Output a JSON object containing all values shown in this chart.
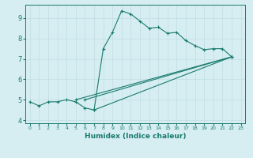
{
  "bg_color": "#d6eef2",
  "line_color": "#1a7a6e",
  "xlabel": "Humidex (Indice chaleur)",
  "xlim": [
    -0.5,
    23.5
  ],
  "ylim": [
    3.85,
    9.65
  ],
  "xticks": [
    0,
    1,
    2,
    3,
    4,
    5,
    6,
    7,
    8,
    9,
    10,
    11,
    12,
    13,
    14,
    15,
    16,
    17,
    18,
    19,
    20,
    21,
    22,
    23
  ],
  "yticks": [
    4,
    5,
    6,
    7,
    8,
    9
  ],
  "curve_main_x": [
    0,
    1,
    2,
    3,
    4,
    5,
    6,
    7,
    8,
    9,
    10,
    11,
    12,
    13,
    14,
    15,
    16,
    17,
    18,
    19,
    20,
    21,
    22
  ],
  "curve_main_y": [
    4.9,
    4.7,
    4.9,
    4.9,
    5.0,
    4.9,
    4.6,
    4.5,
    7.5,
    8.3,
    9.35,
    9.2,
    8.85,
    8.5,
    8.55,
    8.25,
    8.3,
    7.9,
    7.65,
    7.45,
    7.5,
    7.5,
    7.1
  ],
  "line1_x": [
    5,
    22
  ],
  "line1_y": [
    5.0,
    7.1
  ],
  "line2_x": [
    6,
    22
  ],
  "line2_y": [
    5.0,
    7.1
  ],
  "line3_x": [
    7,
    22
  ],
  "line3_y": [
    4.5,
    7.1
  ]
}
